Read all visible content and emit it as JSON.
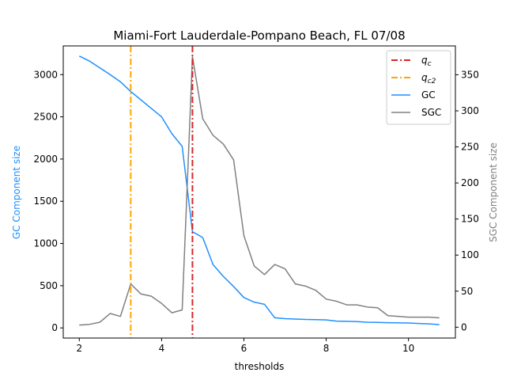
{
  "chart_data": {
    "type": "line",
    "title": "Miami-Fort Lauderdale-Pompano Beach, FL 07/08",
    "xlabel": "thresholds",
    "ylabel_left": "GC Component size",
    "ylabel_right": "SGC Component size",
    "xlim": [
      1.61,
      11.14
    ],
    "ylim_left": [
      -120,
      3340
    ],
    "ylim_right": [
      -15,
      390
    ],
    "x_ticks": [
      2,
      4,
      6,
      8,
      10
    ],
    "y_ticks_left": [
      0,
      500,
      1000,
      1500,
      2000,
      2500,
      3000
    ],
    "y_ticks_right": [
      0,
      50,
      100,
      150,
      200,
      250,
      300,
      350
    ],
    "legend_position": "top-right",
    "x": [
      2.0,
      2.25,
      2.5,
      2.75,
      3.0,
      3.25,
      3.5,
      3.75,
      4.0,
      4.25,
      4.5,
      4.75,
      5.0,
      5.25,
      5.5,
      5.75,
      6.0,
      6.25,
      6.5,
      6.75,
      7.0,
      7.25,
      7.5,
      7.75,
      8.0,
      8.25,
      8.5,
      8.75,
      9.0,
      9.25,
      9.5,
      9.75,
      10.0,
      10.25,
      10.5,
      10.75
    ],
    "series": [
      {
        "name": "GC",
        "axis": "left",
        "color": "#1e90ff",
        "values": [
          3220,
          3160,
          3080,
          3000,
          2915,
          2800,
          2700,
          2600,
          2500,
          2300,
          2150,
          1140,
          1070,
          750,
          610,
          490,
          360,
          305,
          280,
          120,
          110,
          105,
          100,
          98,
          95,
          80,
          78,
          75,
          68,
          65,
          62,
          60,
          58,
          52,
          48,
          40
        ]
      },
      {
        "name": "SGC",
        "axis": "right",
        "color": "#808080",
        "values": [
          3,
          4,
          7,
          19,
          15,
          60,
          46,
          43,
          33,
          20,
          24,
          375,
          289,
          266,
          254,
          232,
          127,
          85,
          73,
          87,
          81,
          60,
          57,
          51,
          39,
          36,
          31,
          31,
          28,
          27,
          16,
          15,
          14,
          14,
          14,
          13
        ]
      }
    ],
    "vlines": [
      {
        "name": "q_c",
        "x": 4.75,
        "color": "#d62728"
      },
      {
        "name": "q_c2",
        "x": 3.25,
        "color": "#ffa500"
      }
    ],
    "legend": [
      "q_c",
      "q_c2",
      "GC",
      "SGC"
    ]
  }
}
